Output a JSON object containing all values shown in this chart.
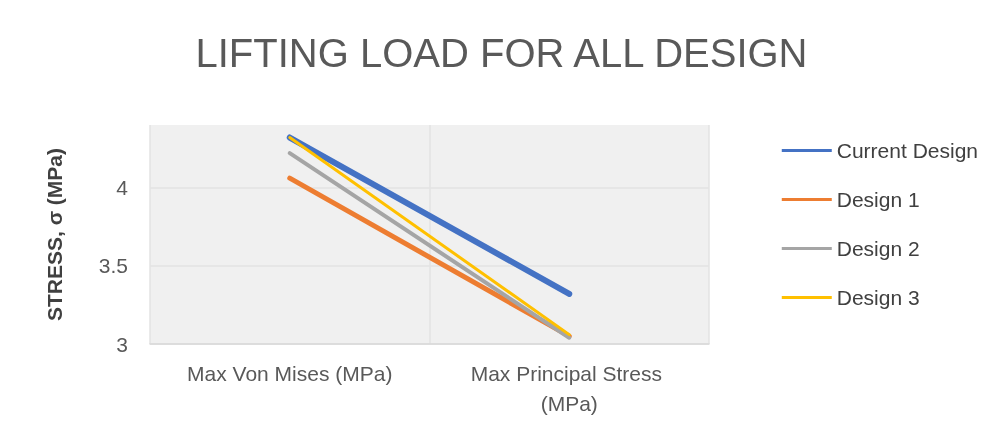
{
  "chart_data": {
    "type": "line",
    "title": "LIFTING LOAD FOR ALL DESIGN",
    "ylabel": "STRESS, σ (MPa)",
    "categories": [
      "Max Von Mises (MPa)",
      "Max Principal Stress (MPa)"
    ],
    "series": [
      {
        "name": "Current Design",
        "color": "#4472c4",
        "values": [
          4.32,
          3.32
        ]
      },
      {
        "name": "Design 1",
        "color": "#ed7d31",
        "values": [
          4.06,
          3.05
        ]
      },
      {
        "name": "Design 2",
        "color": "#a5a5a5",
        "values": [
          4.22,
          3.04
        ]
      },
      {
        "name": "Design 3",
        "color": "#ffc000",
        "values": [
          4.32,
          3.06
        ]
      }
    ],
    "ylim": [
      3,
      4.4
    ],
    "yticks": [
      3,
      3.5,
      4
    ],
    "grid": true,
    "legend": "right",
    "marker": "none",
    "line_style": "solid"
  }
}
